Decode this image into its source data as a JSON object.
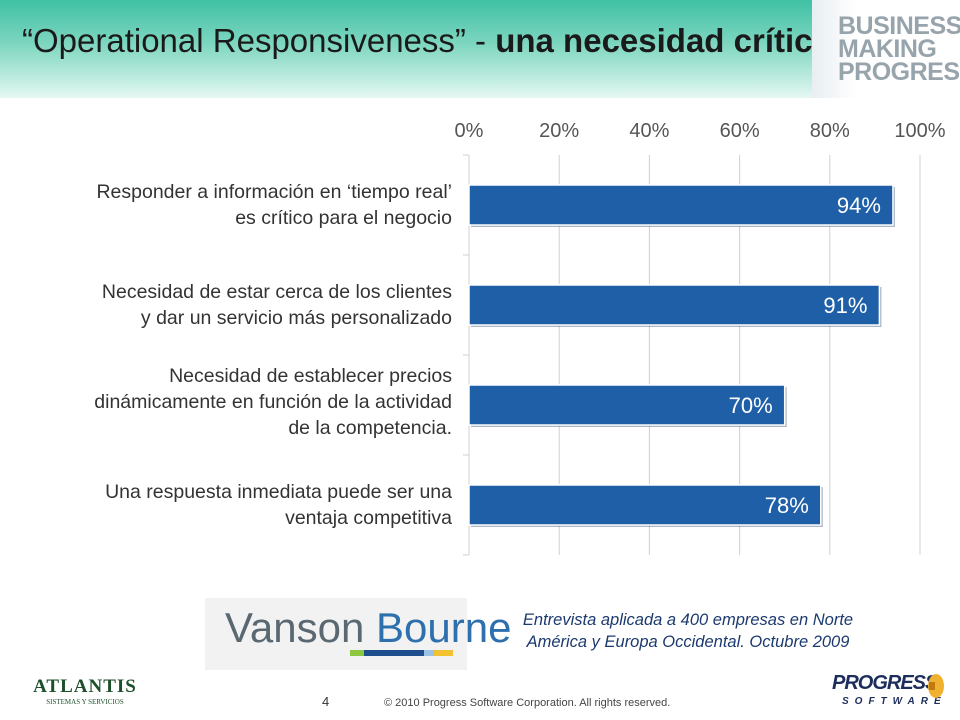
{
  "header": {
    "title_plain": "“Operational Responsiveness”  - ",
    "title_bold": "una necesidad crítica",
    "brand_lines": [
      "BUSINESS",
      "MAKING",
      "PROGRESS"
    ]
  },
  "chart_data": {
    "type": "bar",
    "orientation": "horizontal",
    "categories": [
      [
        "Responder a información en ‘tiempo real’",
        "es crítico para el negocio"
      ],
      [
        "Necesidad de estar cerca de los clientes",
        "y dar un servicio más personalizado"
      ],
      [
        "Necesidad de establecer precios",
        "dinámicamente en función de la actividad",
        "de la competencia."
      ],
      [
        "Una respuesta inmediata puede ser una",
        "ventaja competitiva"
      ]
    ],
    "values": [
      94,
      91,
      70,
      78
    ],
    "value_labels": [
      "94%",
      "91%",
      "70%",
      "78%"
    ],
    "xlim": [
      0,
      100
    ],
    "xticks": [
      "0%",
      "20%",
      "40%",
      "60%",
      "80%",
      "100%"
    ],
    "axis_position": "top",
    "grid": true,
    "bar_color": "#1f5fa8"
  },
  "source": {
    "logo_word1": "Vanson",
    "logo_word2": "Bourne",
    "note_line1": "Entrevista aplicada a 400 empresas en Norte",
    "note_line2": "América y Europa Occidental. Octubre 2009"
  },
  "footer": {
    "page_number": "4",
    "copyright": "© 2010 Progress Software Corporation. All rights reserved.",
    "atlantis_name": "ATLANTIS",
    "atlantis_sub": "SISTEMAS Y SERVICIOS",
    "progress_name": "PROGRESS",
    "progress_sub": "SOFTWARE"
  }
}
